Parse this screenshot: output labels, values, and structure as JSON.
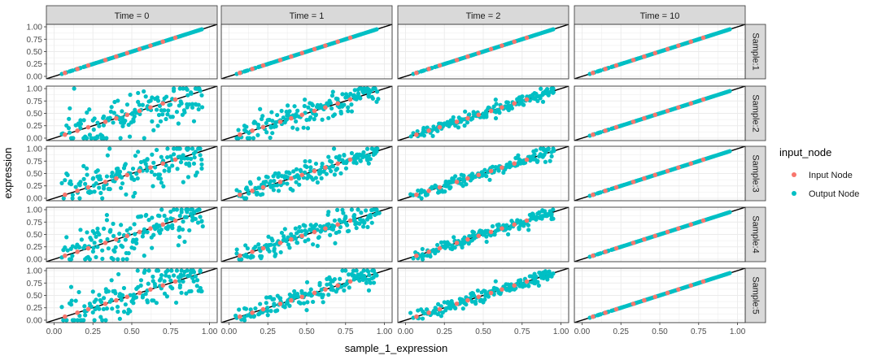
{
  "chart_data": {
    "type": "scatter",
    "facet_columns": {
      "labels": [
        "Time = 0",
        "Time = 1",
        "Time = 2",
        "Time = 10"
      ],
      "noise_sd": [
        0.25,
        0.12,
        0.06,
        0.0
      ]
    },
    "facet_rows": [
      "Sample:1",
      "Sample:2",
      "Sample:3",
      "Sample:4",
      "Sample:5"
    ],
    "xlabel": "sample_1_expression",
    "ylabel": "expression",
    "xlim": [
      0,
      1
    ],
    "ylim": [
      0,
      1
    ],
    "x_ticks": [
      "0.00",
      "0.25",
      "0.50",
      "0.75",
      "1.00"
    ],
    "y_ticks": [
      "0.00",
      "0.25",
      "0.50",
      "0.75",
      "1.00"
    ],
    "reference_line": {
      "intercept": 0,
      "slope": 1,
      "color": "#000000"
    },
    "legend": {
      "title": "input_node",
      "position": "right",
      "entries": [
        {
          "label": "Input Node",
          "color": "#F8766D"
        },
        {
          "label": "Output Node",
          "color": "#00BFC4"
        }
      ]
    },
    "series": [
      {
        "name": "Input Node",
        "color": "#F8766D",
        "x": [
          0.07,
          0.15,
          0.22,
          0.33,
          0.4,
          0.47,
          0.55,
          0.62,
          0.7,
          0.78
        ]
      },
      {
        "name": "Output Node",
        "color": "#00BFC4",
        "x": [
          0.05,
          0.08,
          0.1,
          0.11,
          0.12,
          0.14,
          0.16,
          0.17,
          0.19,
          0.2,
          0.21,
          0.23,
          0.24,
          0.25,
          0.26,
          0.27,
          0.28,
          0.29,
          0.3,
          0.31,
          0.32,
          0.34,
          0.35,
          0.36,
          0.37,
          0.38,
          0.39,
          0.41,
          0.42,
          0.43,
          0.44,
          0.45,
          0.46,
          0.48,
          0.49,
          0.5,
          0.51,
          0.52,
          0.53,
          0.54,
          0.56,
          0.57,
          0.58,
          0.59,
          0.6,
          0.61,
          0.63,
          0.64,
          0.65,
          0.66,
          0.67,
          0.68,
          0.69,
          0.71,
          0.72,
          0.73,
          0.74,
          0.75,
          0.76,
          0.77,
          0.79,
          0.8,
          0.81,
          0.82,
          0.83,
          0.84,
          0.85,
          0.86,
          0.87,
          0.88,
          0.89,
          0.9,
          0.91,
          0.92,
          0.93,
          0.94,
          0.95
        ]
      }
    ],
    "colors": {
      "panel_bg": "#FFFFFF",
      "grid": "#EBEBEB",
      "strip_bg": "#D9D9D9",
      "border": "#333333"
    }
  }
}
